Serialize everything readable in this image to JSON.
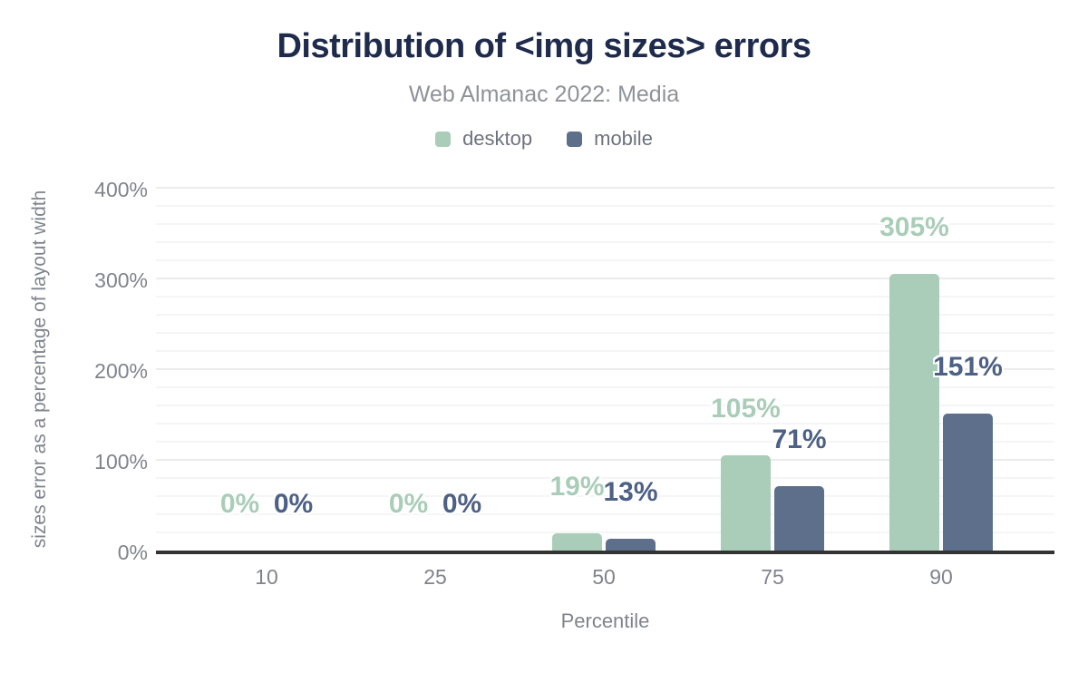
{
  "page": {
    "background": "#ffffff"
  },
  "chart_data": {
    "type": "bar",
    "title": "Distribution of <img sizes> errors",
    "subtitle": "Web Almanac 2022: Media",
    "xlabel": "Percentile",
    "ylabel": "sizes error as a percentage of layout width",
    "categories": [
      "10",
      "25",
      "50",
      "75",
      "90"
    ],
    "series": [
      {
        "name": "desktop",
        "color": "#a9cdb8",
        "label_color": "#a9cdb8",
        "values": [
          0,
          0,
          19,
          105,
          305
        ],
        "labels": [
          "0%",
          "0%",
          "19%",
          "105%",
          "305%"
        ]
      },
      {
        "name": "mobile",
        "color": "#5d6f8b",
        "label_color": "#4d6085",
        "values": [
          0,
          0,
          13,
          71,
          151
        ],
        "labels": [
          "0%",
          "0%",
          "13%",
          "71%",
          "151%"
        ]
      }
    ],
    "ylim": [
      0,
      400
    ],
    "y_ticks": [
      {
        "value": 0,
        "label": "0%"
      },
      {
        "value": 100,
        "label": "100%"
      },
      {
        "value": 200,
        "label": "200%"
      },
      {
        "value": 300,
        "label": "300%"
      },
      {
        "value": 400,
        "label": "400%"
      }
    ],
    "y_minor_step": 20,
    "grid": "horizontal",
    "legend_position": "top"
  },
  "colors": {
    "title": "#1e2b4d",
    "subtitle": "#8e939a",
    "axis_text": "#7f848d",
    "baseline": "#333333",
    "grid_minor": "#f5f5f5",
    "grid_major": "#ebebeb"
  }
}
